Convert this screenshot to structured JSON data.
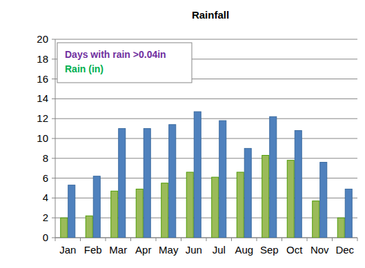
{
  "chart_data": {
    "type": "bar",
    "title": "Rainfall",
    "categories": [
      "Jan",
      "Feb",
      "Mar",
      "Apr",
      "May",
      "Jun",
      "Jul",
      "Aug",
      "Sep",
      "Oct",
      "Nov",
      "Dec"
    ],
    "series": [
      {
        "name": "Rain (in)",
        "color": "#9bbb59",
        "values": [
          2.0,
          2.2,
          4.7,
          4.9,
          5.5,
          6.6,
          6.1,
          6.6,
          8.3,
          7.8,
          3.7,
          2.0
        ]
      },
      {
        "name": "Days with rain >0.04in",
        "color": "#4f81bd",
        "values": [
          5.3,
          6.2,
          11.0,
          11.0,
          11.4,
          12.7,
          11.8,
          9.0,
          12.2,
          10.8,
          7.6,
          4.9
        ]
      }
    ],
    "ylim": [
      0,
      20
    ],
    "yticks": [
      0,
      2,
      4,
      6,
      8,
      10,
      12,
      14,
      16,
      18,
      20
    ],
    "grid": true,
    "legend": "top-left"
  }
}
